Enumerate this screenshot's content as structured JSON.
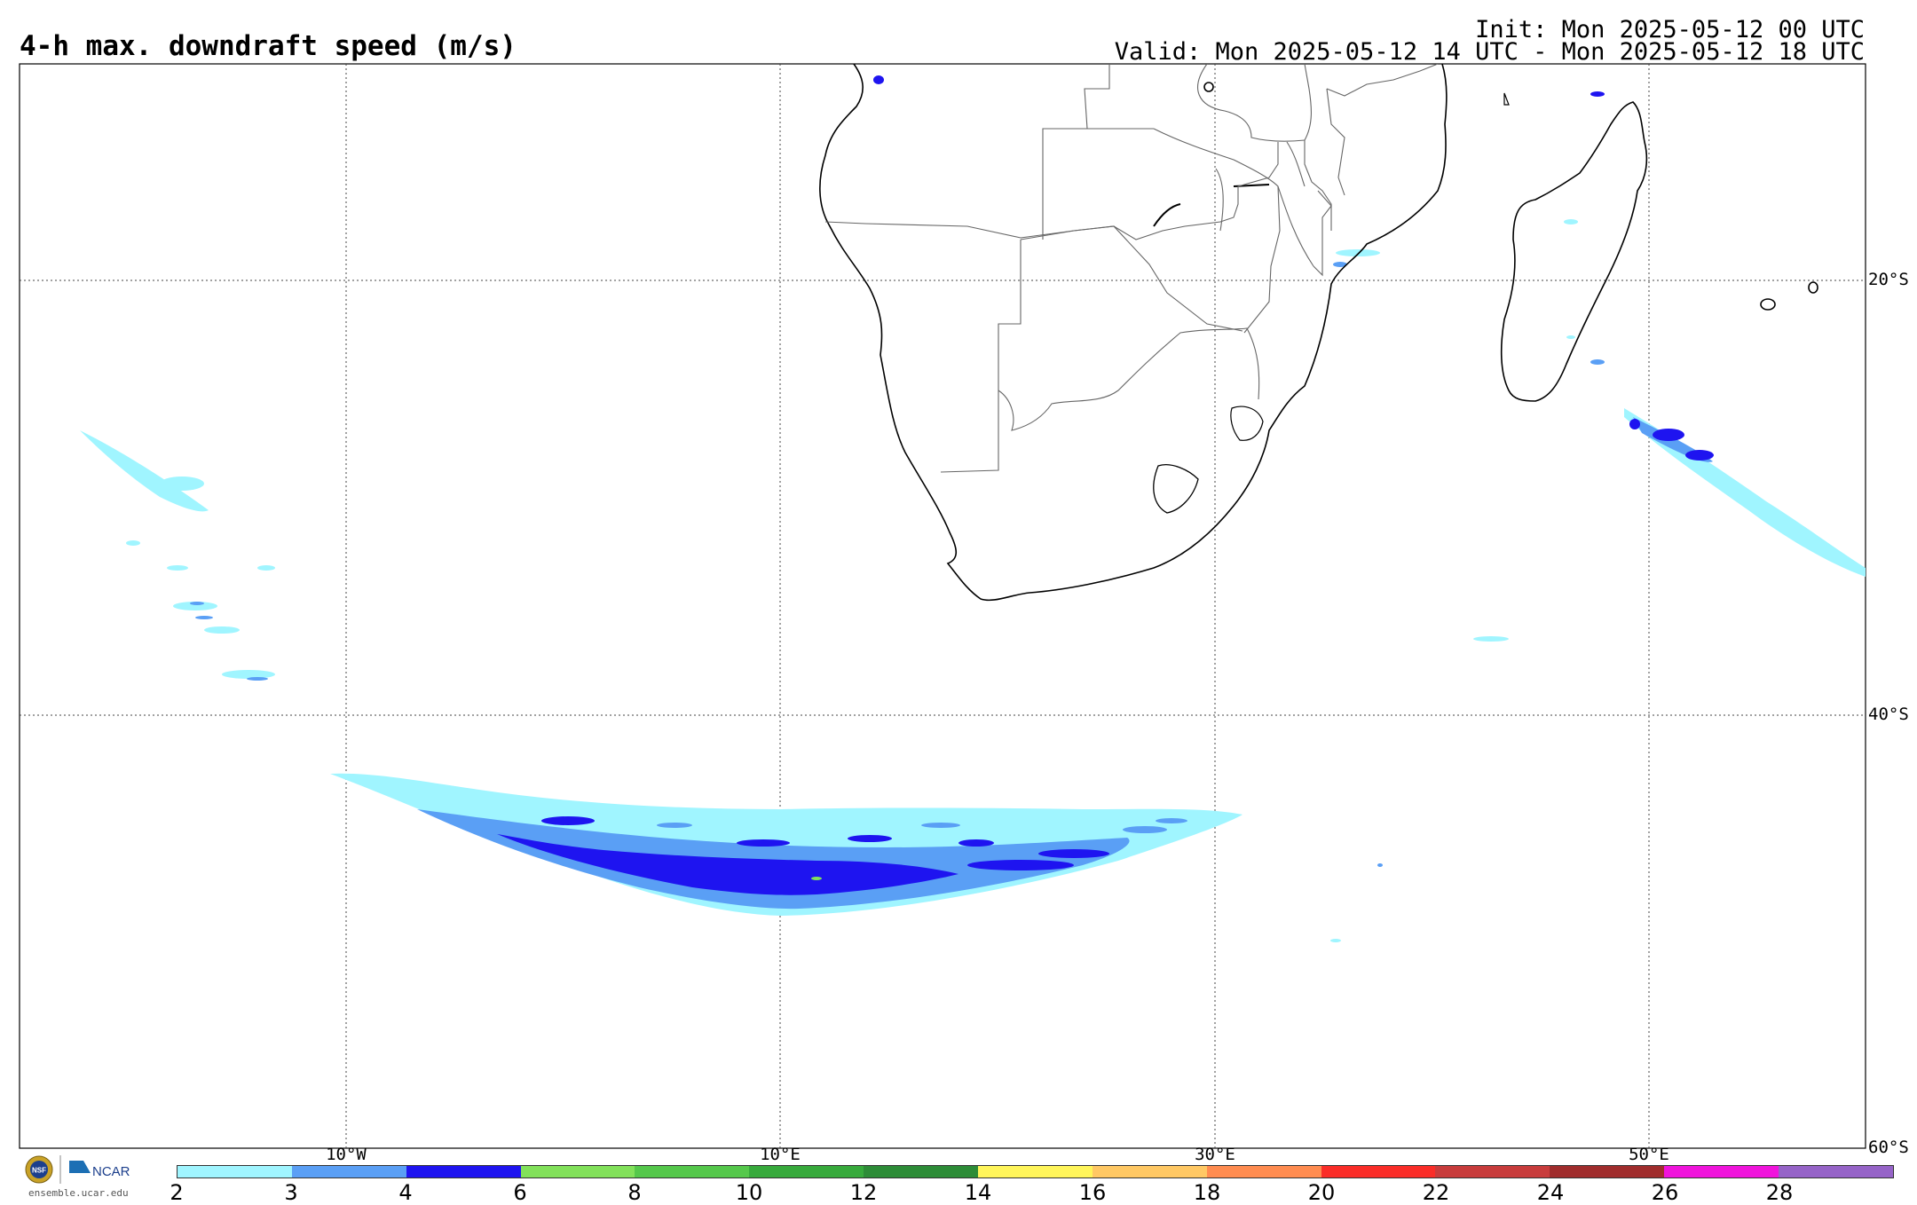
{
  "header": {
    "title": "4-h max. downdraft speed (m/s)",
    "init": "Init: Mon 2025-05-12 00 UTC",
    "valid": "Valid: Mon 2025-05-12 14 UTC - Mon 2025-05-12 18 UTC"
  },
  "map": {
    "lat_labels": [
      "20°S",
      "40°S",
      "60°S"
    ],
    "lon_labels": [
      "10°W",
      "10°E",
      "30°E",
      "50°E"
    ]
  },
  "colorbar": {
    "tick_labels": [
      "2",
      "3",
      "4",
      "6",
      "8",
      "10",
      "12",
      "14",
      "16",
      "18",
      "20",
      "22",
      "24",
      "26",
      "28"
    ],
    "colors": [
      "#a0f5ff",
      "#5a9ff5",
      "#1e14f0",
      "#82e15a",
      "#55c84b",
      "#37aa3c",
      "#2d8c37",
      "#fff55a",
      "#ffc864",
      "#ff8c50",
      "#fa2d28",
      "#c83c3c",
      "#a02d2d",
      "#f014dc",
      "#9664c8"
    ]
  },
  "logo": {
    "org_text": "NCAR",
    "badge_text": "NSF",
    "url": "ensemble.ucar.edu"
  }
}
